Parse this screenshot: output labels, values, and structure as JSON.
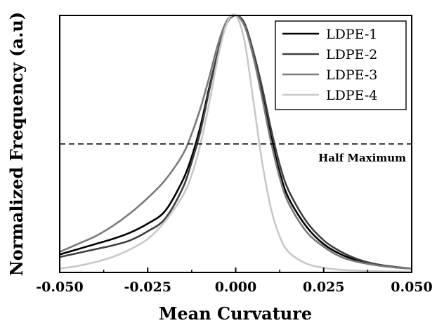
{
  "chart_data": {
    "type": "line",
    "title": "",
    "xlabel": "Mean Curvature",
    "ylabel": "Normalized Frequency (a.u)",
    "xlim": [
      -0.05,
      0.05
    ],
    "ylim": [
      0,
      1
    ],
    "x_ticks": [
      "-0.050",
      "-0.025",
      "0.000",
      "0.025",
      "0.050"
    ],
    "y_ticks_shown": false,
    "grid": false,
    "legend_position": "top-right",
    "x": [
      -0.05,
      -0.045,
      -0.04,
      -0.035,
      -0.03,
      -0.025,
      -0.02,
      -0.015,
      -0.0125,
      -0.01,
      -0.0075,
      -0.005,
      -0.0025,
      0.0,
      0.0025,
      0.005,
      0.0075,
      0.01,
      0.0125,
      0.015,
      0.02,
      0.025,
      0.03,
      0.035,
      0.04,
      0.045,
      0.05
    ],
    "series": [
      {
        "name": "LDPE-1",
        "color": "#000000",
        "values": [
          0.07,
          0.09,
          0.11,
          0.13,
          0.155,
          0.19,
          0.24,
          0.36,
          0.45,
          0.57,
          0.72,
          0.86,
          0.97,
          1.0,
          0.96,
          0.85,
          0.7,
          0.53,
          0.39,
          0.29,
          0.18,
          0.11,
          0.07,
          0.045,
          0.03,
          0.02,
          0.015
        ]
      },
      {
        "name": "LDPE-2",
        "color": "#404040",
        "values": [
          0.06,
          0.075,
          0.09,
          0.105,
          0.125,
          0.16,
          0.21,
          0.33,
          0.43,
          0.55,
          0.71,
          0.86,
          0.97,
          1.0,
          0.97,
          0.86,
          0.72,
          0.56,
          0.42,
          0.32,
          0.2,
          0.125,
          0.08,
          0.05,
          0.032,
          0.022,
          0.015
        ]
      },
      {
        "name": "LDPE-3",
        "color": "#7a7a7a",
        "values": [
          0.08,
          0.11,
          0.14,
          0.18,
          0.23,
          0.29,
          0.36,
          0.46,
          0.54,
          0.64,
          0.76,
          0.89,
          0.98,
          1.0,
          0.96,
          0.84,
          0.68,
          0.51,
          0.37,
          0.27,
          0.16,
          0.1,
          0.06,
          0.04,
          0.028,
          0.02,
          0.015
        ]
      },
      {
        "name": "LDPE-4",
        "color": "#c8c8c8",
        "values": [
          0.015,
          0.025,
          0.04,
          0.06,
          0.09,
          0.13,
          0.2,
          0.3,
          0.38,
          0.5,
          0.66,
          0.84,
          0.97,
          1.0,
          0.9,
          0.67,
          0.43,
          0.25,
          0.14,
          0.08,
          0.035,
          0.018,
          0.01,
          0.007,
          0.005,
          0.004,
          0.003
        ]
      }
    ],
    "annotations": [
      {
        "text": "Half Maximum",
        "type": "hline",
        "y": 0.5,
        "style": "dashed"
      }
    ]
  }
}
